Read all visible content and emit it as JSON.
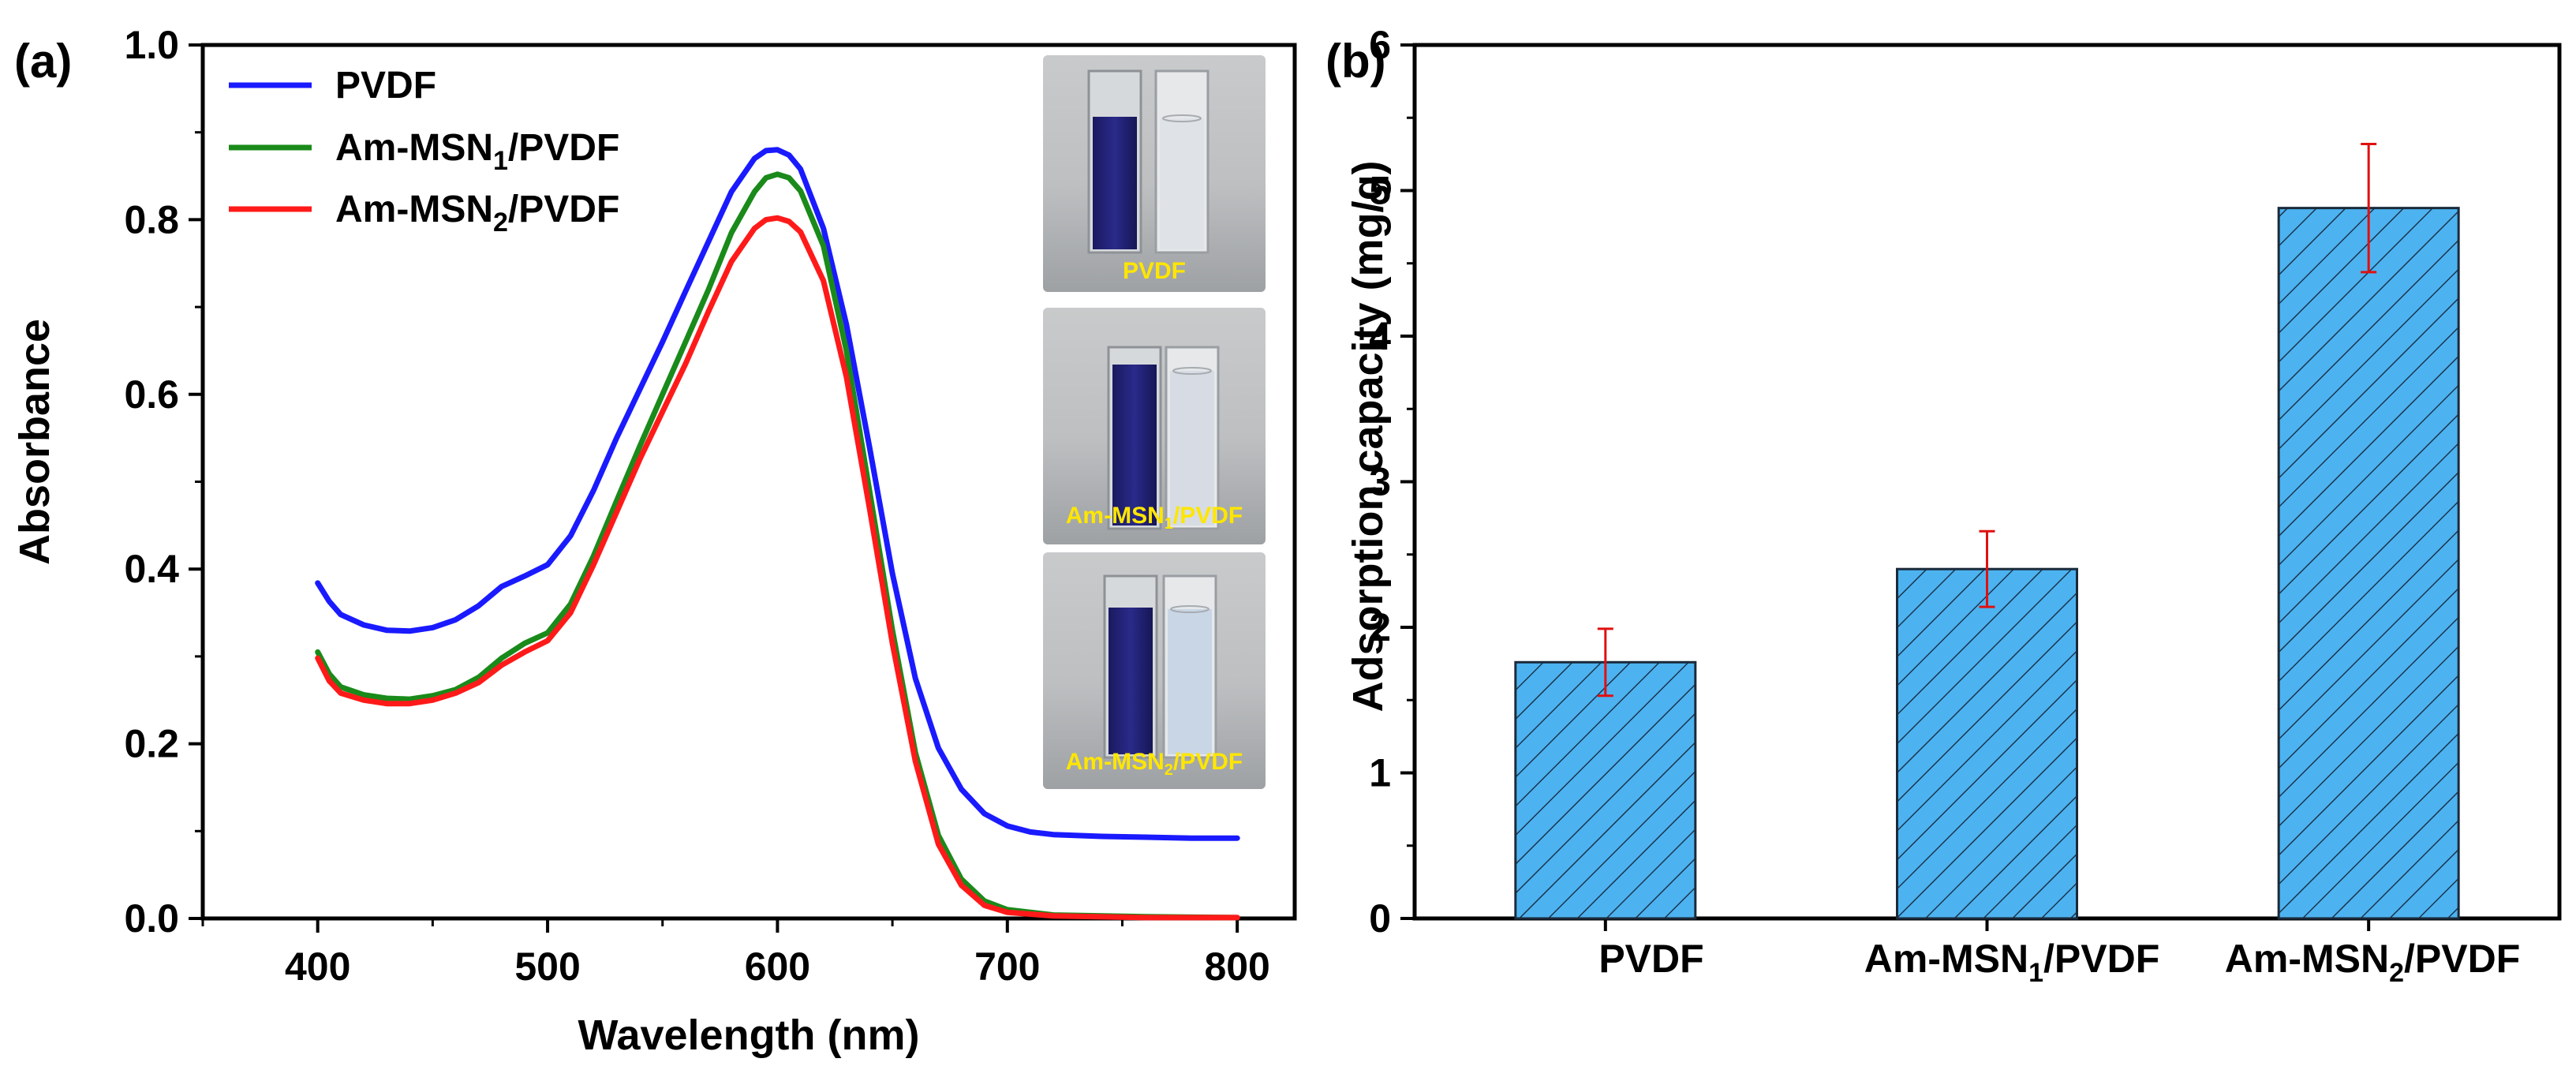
{
  "panels": {
    "a": {
      "label": "(a)"
    },
    "b": {
      "label": "(b)"
    }
  },
  "chart_data": [
    {
      "id": "a",
      "type": "line",
      "xlabel": "Wavelength (nm)",
      "ylabel": "Absorbance",
      "xlim": [
        350,
        825
      ],
      "ylim": [
        0.0,
        1.0
      ],
      "xticks": [
        400,
        500,
        600,
        700,
        800
      ],
      "yticks": [
        "0.0",
        "0.2",
        "0.4",
        "0.6",
        "0.8",
        "1.0"
      ],
      "legend_position": "top-left",
      "series": [
        {
          "name": "PVDF",
          "name_main": "PVDF",
          "name_sub": "",
          "name_tail": "",
          "color": "#1a1aff",
          "points": [
            [
              400,
              0.384
            ],
            [
              405,
              0.363
            ],
            [
              410,
              0.348
            ],
            [
              420,
              0.336
            ],
            [
              430,
              0.33
            ],
            [
              440,
              0.329
            ],
            [
              450,
              0.333
            ],
            [
              460,
              0.342
            ],
            [
              470,
              0.358
            ],
            [
              480,
              0.38
            ],
            [
              490,
              0.392
            ],
            [
              500,
              0.405
            ],
            [
              510,
              0.438
            ],
            [
              520,
              0.49
            ],
            [
              530,
              0.55
            ],
            [
              540,
              0.605
            ],
            [
              550,
              0.66
            ],
            [
              560,
              0.718
            ],
            [
              570,
              0.775
            ],
            [
              580,
              0.832
            ],
            [
              590,
              0.87
            ],
            [
              595,
              0.879
            ],
            [
              600,
              0.88
            ],
            [
              605,
              0.874
            ],
            [
              610,
              0.858
            ],
            [
              620,
              0.79
            ],
            [
              630,
              0.68
            ],
            [
              640,
              0.54
            ],
            [
              650,
              0.395
            ],
            [
              660,
              0.275
            ],
            [
              670,
              0.195
            ],
            [
              680,
              0.148
            ],
            [
              690,
              0.12
            ],
            [
              700,
              0.106
            ],
            [
              710,
              0.099
            ],
            [
              720,
              0.096
            ],
            [
              740,
              0.094
            ],
            [
              760,
              0.093
            ],
            [
              780,
              0.092
            ],
            [
              800,
              0.092
            ]
          ]
        },
        {
          "name": "Am-MSN1/PVDF",
          "name_main": "Am-MSN",
          "name_sub": "1",
          "name_tail": "/PVDF",
          "color": "#1a8a1a",
          "points": [
            [
              400,
              0.305
            ],
            [
              405,
              0.28
            ],
            [
              410,
              0.265
            ],
            [
              420,
              0.256
            ],
            [
              430,
              0.252
            ],
            [
              440,
              0.251
            ],
            [
              450,
              0.255
            ],
            [
              460,
              0.262
            ],
            [
              470,
              0.276
            ],
            [
              480,
              0.298
            ],
            [
              490,
              0.315
            ],
            [
              500,
              0.327
            ],
            [
              510,
              0.36
            ],
            [
              520,
              0.415
            ],
            [
              530,
              0.478
            ],
            [
              540,
              0.54
            ],
            [
              550,
              0.6
            ],
            [
              560,
              0.66
            ],
            [
              570,
              0.72
            ],
            [
              580,
              0.785
            ],
            [
              590,
              0.832
            ],
            [
              595,
              0.848
            ],
            [
              600,
              0.852
            ],
            [
              605,
              0.848
            ],
            [
              610,
              0.833
            ],
            [
              620,
              0.77
            ],
            [
              630,
              0.65
            ],
            [
              640,
              0.49
            ],
            [
              650,
              0.33
            ],
            [
              660,
              0.19
            ],
            [
              670,
              0.095
            ],
            [
              680,
              0.045
            ],
            [
              690,
              0.02
            ],
            [
              700,
              0.01
            ],
            [
              720,
              0.004
            ],
            [
              760,
              0.002
            ],
            [
              800,
              0.001
            ]
          ]
        },
        {
          "name": "Am-MSN2/PVDF",
          "name_main": "Am-MSN",
          "name_sub": "2",
          "name_tail": "/PVDF",
          "color": "#ff1a1a",
          "points": [
            [
              400,
              0.298
            ],
            [
              405,
              0.272
            ],
            [
              410,
              0.258
            ],
            [
              420,
              0.25
            ],
            [
              430,
              0.246
            ],
            [
              440,
              0.246
            ],
            [
              450,
              0.25
            ],
            [
              460,
              0.258
            ],
            [
              470,
              0.27
            ],
            [
              480,
              0.29
            ],
            [
              490,
              0.305
            ],
            [
              500,
              0.318
            ],
            [
              510,
              0.35
            ],
            [
              520,
              0.405
            ],
            [
              530,
              0.465
            ],
            [
              540,
              0.525
            ],
            [
              550,
              0.58
            ],
            [
              560,
              0.635
            ],
            [
              570,
              0.695
            ],
            [
              580,
              0.752
            ],
            [
              590,
              0.79
            ],
            [
              595,
              0.8
            ],
            [
              600,
              0.802
            ],
            [
              605,
              0.798
            ],
            [
              610,
              0.786
            ],
            [
              620,
              0.73
            ],
            [
              630,
              0.62
            ],
            [
              640,
              0.47
            ],
            [
              650,
              0.315
            ],
            [
              660,
              0.18
            ],
            [
              670,
              0.085
            ],
            [
              680,
              0.038
            ],
            [
              690,
              0.015
            ],
            [
              700,
              0.007
            ],
            [
              720,
              0.003
            ],
            [
              760,
              0.001
            ],
            [
              800,
              0.001
            ]
          ]
        }
      ],
      "inset_photos": [
        {
          "caption": "PVDF",
          "caption_main": "PVDF",
          "caption_sub": "",
          "caption_tail": "",
          "solution_color": "#dfe3e8"
        },
        {
          "caption": "Am-MSN1/PVDF",
          "caption_main": "Am-MSN",
          "caption_sub": "1",
          "caption_tail": "/PVDF",
          "solution_color": "#d7dce4"
        },
        {
          "caption": "Am-MSN2/PVDF",
          "caption_main": "Am-MSN",
          "caption_sub": "2",
          "caption_tail": "/PVDF",
          "solution_color": "#c9d6e6"
        }
      ]
    },
    {
      "id": "b",
      "type": "bar",
      "ylabel": "Adsorption capacity (mg/g)",
      "xlabel": "",
      "ylim": [
        0,
        6
      ],
      "yticks": [
        "0",
        "1",
        "2",
        "3",
        "4",
        "5",
        "6"
      ],
      "bar_color": "#4db3f0",
      "hatch": "diagonal",
      "error_bar_color": "#e01010",
      "categories": [
        {
          "name": "PVDF",
          "main": "PVDF",
          "sub": "",
          "tail": ""
        },
        {
          "name": "Am-MSN1/PVDF",
          "main": "Am-MSN",
          "sub": "1",
          "tail": "/PVDF"
        },
        {
          "name": "Am-MSN2/PVDF",
          "main": "Am-MSN",
          "sub": "2",
          "tail": "/PVDF"
        }
      ],
      "values": [
        1.76,
        2.4,
        4.88
      ],
      "errors": [
        0.23,
        0.26,
        0.44
      ]
    }
  ]
}
